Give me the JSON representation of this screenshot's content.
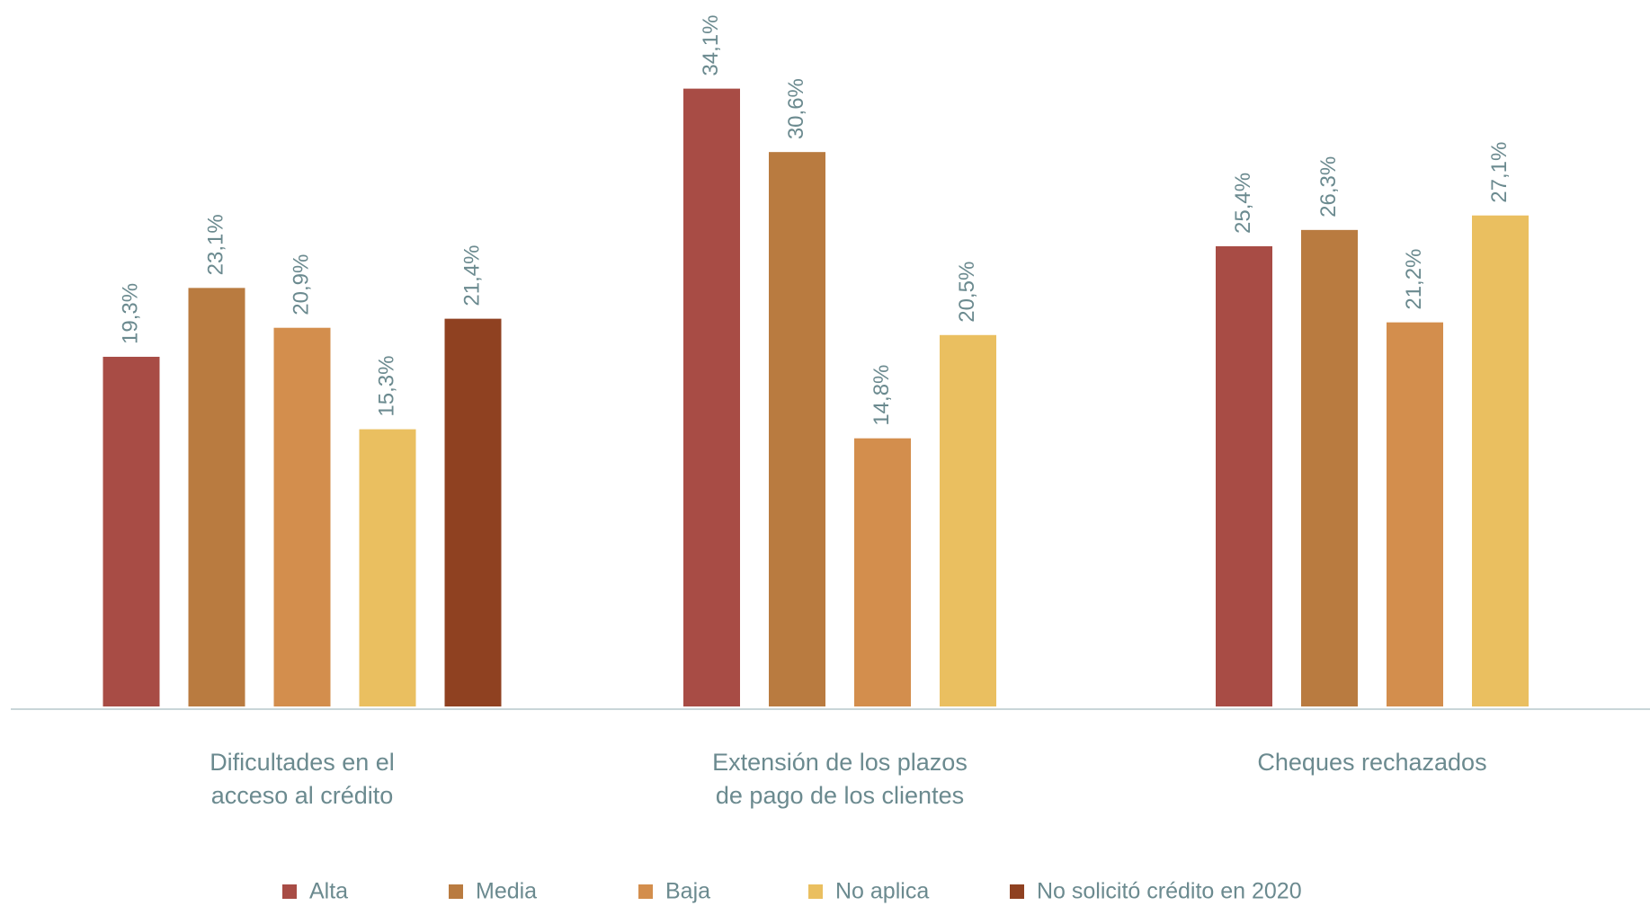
{
  "chart_data": {
    "type": "bar",
    "categories": [
      "Dificultades en el\nacceso al crédito",
      "Extensión de los plazos\nde pago de los clientes",
      "Cheques rechazados"
    ],
    "series": [
      {
        "name": "Alta",
        "color": "#a84c45",
        "values": [
          19.3,
          34.1,
          25.4
        ],
        "value_labels": [
          "19,3%",
          "34,1%",
          "25,4%"
        ]
      },
      {
        "name": "Media",
        "color": "#b97b40",
        "values": [
          23.1,
          30.6,
          26.3
        ],
        "value_labels": [
          "23,1%",
          "30,6%",
          "26,3%"
        ]
      },
      {
        "name": "Baja",
        "color": "#d38e4d",
        "values": [
          20.9,
          14.8,
          21.2
        ],
        "value_labels": [
          "20,9%",
          "14,8%",
          "21,2%"
        ]
      },
      {
        "name": "No aplica",
        "color": "#eabf60",
        "values": [
          15.3,
          20.5,
          27.1
        ],
        "value_labels": [
          "15,3%",
          "20,5%",
          "27,1%"
        ]
      },
      {
        "name": "No solicitó crédito en 2020",
        "color": "#8f4121",
        "values": [
          21.4,
          null,
          null
        ],
        "value_labels": [
          "21,4%",
          null,
          null
        ]
      }
    ],
    "ylim": [
      0,
      38
    ],
    "legend": "bottom"
  }
}
